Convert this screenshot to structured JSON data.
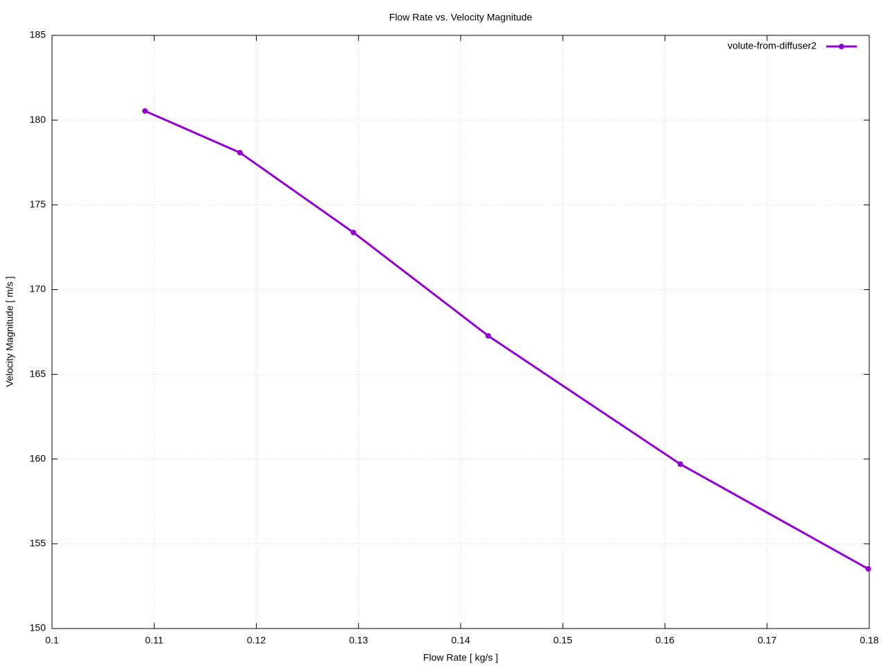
{
  "chart_data": {
    "type": "line",
    "title": "Flow Rate vs. Velocity Magnitude",
    "x_label": "Flow Rate [ kg/s ]",
    "y_label": "Velocity Magnitude [ m/s ]",
    "x": [
      0.1091,
      0.1184,
      0.1295,
      0.1427,
      0.1615,
      0.1799
    ],
    "series": [
      {
        "name": "volute-from-diffuser2",
        "color": "#9400d3",
        "values": [
          180.54,
          178.08,
          173.37,
          167.27,
          159.7,
          153.52
        ]
      }
    ],
    "xlim": [
      0.1,
      0.18
    ],
    "xticks": [
      0.1,
      0.11,
      0.12,
      0.13,
      0.14,
      0.15,
      0.16,
      0.17,
      0.18
    ],
    "ylim": [
      150,
      185
    ],
    "yticks": [
      150,
      155,
      160,
      165,
      170,
      175,
      180,
      185
    ],
    "grid": true,
    "legend": "top-right"
  }
}
